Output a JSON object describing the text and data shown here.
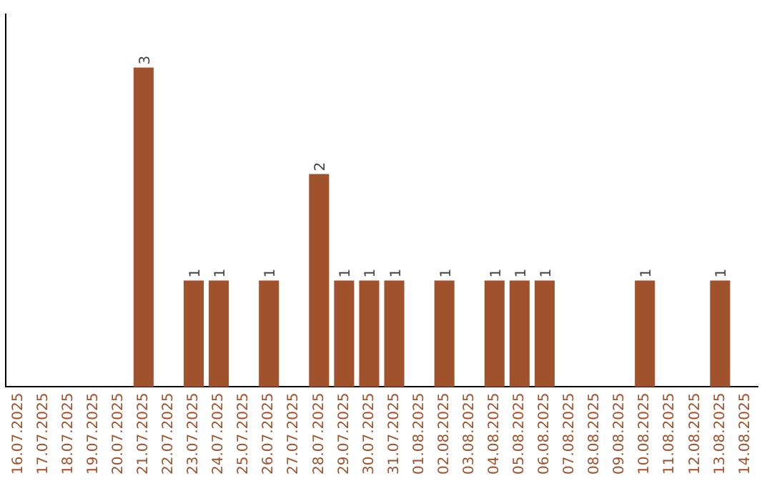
{
  "chart_data": {
    "type": "bar",
    "categories": [
      "16.07.2025",
      "17.07.2025",
      "18.07.2025",
      "19.07.2025",
      "20.07.2025",
      "21.07.2025",
      "22.07.2025",
      "23.07.2025",
      "24.07.2025",
      "25.07.2025",
      "26.07.2025",
      "27.07.2025",
      "28.07.2025",
      "29.07.2025",
      "30.07.2025",
      "31.07.2025",
      "01.08.2025",
      "02.08.2025",
      "03.08.2025",
      "04.08.2025",
      "05.08.2025",
      "06.08.2025",
      "07.08.2025",
      "08.08.2025",
      "09.08.2025",
      "10.08.2025",
      "11.08.2025",
      "12.08.2025",
      "13.08.2025",
      "14.08.2025"
    ],
    "values": [
      0,
      0,
      0,
      0,
      0,
      3,
      0,
      1,
      1,
      0,
      1,
      0,
      2,
      1,
      1,
      1,
      0,
      1,
      0,
      1,
      1,
      1,
      0,
      0,
      0,
      1,
      0,
      0,
      1,
      0
    ],
    "value_labels": [
      null,
      null,
      null,
      null,
      null,
      "3",
      null,
      "1",
      "1",
      null,
      "1",
      null,
      "2",
      "1",
      "1",
      "1",
      null,
      "1",
      null,
      "1",
      "1",
      "1",
      null,
      null,
      null,
      "1",
      null,
      null,
      "1",
      null
    ],
    "color": "#a0522d",
    "tick_labels": "x",
    "grid": false,
    "legend": false
  }
}
